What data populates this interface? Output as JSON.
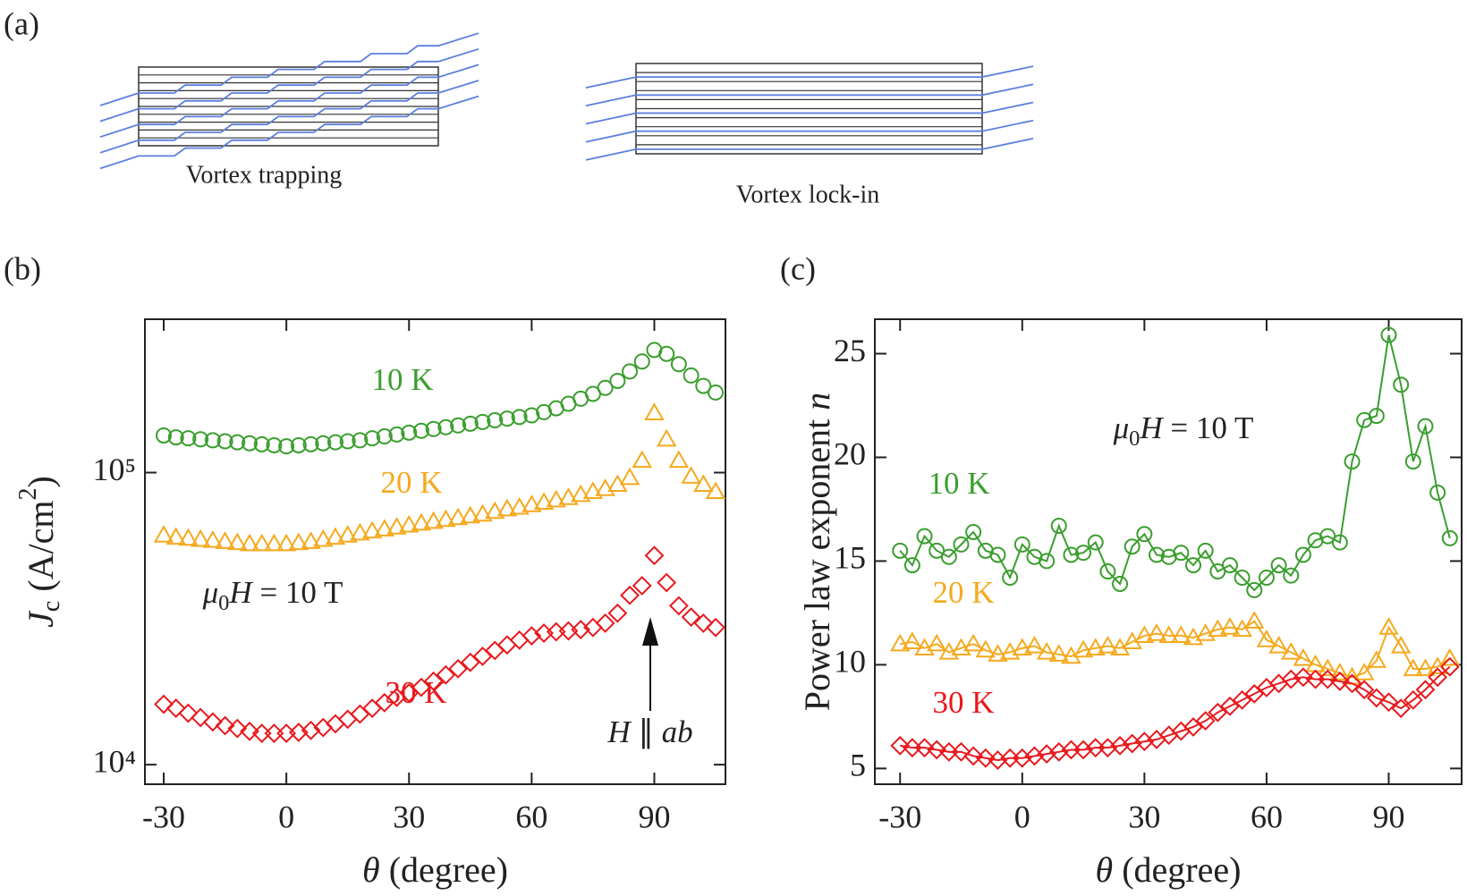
{
  "panel_labels": [
    "(a)",
    "(b)",
    "(c)"
  ],
  "diagram": {
    "left_label": "Vortex trapping",
    "right_label": "Vortex lock-in"
  },
  "chart_data": [
    {
      "type": "scatter",
      "log_y": true,
      "lines": false,
      "ylabel": [
        "J",
        "c",
        " (A/cm",
        "2",
        ")"
      ],
      "xlabel": [
        "θ",
        " (degree)"
      ],
      "annotation_field": [
        "μ",
        "0",
        "H",
        " = 10 T"
      ],
      "annotation_arrow": [
        "H",
        " ∥ ",
        "ab"
      ],
      "xlim": [
        -34.6,
        107.4
      ],
      "xticks": [
        -30,
        0,
        30,
        60,
        90
      ],
      "ylim": [
        8570,
        335000
      ],
      "yticks": [
        {
          "value": 10000,
          "label": "10⁴"
        },
        {
          "value": 100000,
          "label": "10⁵"
        }
      ],
      "x": [
        -30,
        -27,
        -24,
        -21,
        -18,
        -15,
        -12,
        -9,
        -6,
        -3,
        0,
        3,
        6,
        9,
        12,
        15,
        18,
        21,
        24,
        27,
        30,
        33,
        36,
        39,
        42,
        45,
        48,
        51,
        54,
        57,
        60,
        63,
        66,
        69,
        72,
        75,
        78,
        81,
        84,
        87,
        90,
        93,
        96,
        99,
        102,
        105
      ],
      "series": [
        {
          "name": "10 K",
          "color": "#3a9e2e",
          "marker": "circle",
          "values": [
            134000,
            132000,
            131000,
            130000,
            129000,
            128000,
            127000,
            126000,
            125000,
            124000,
            123000,
            124000,
            125000,
            126000,
            127000,
            128000,
            129000,
            131000,
            133000,
            135000,
            137000,
            139000,
            141000,
            143000,
            145000,
            147000,
            149000,
            151000,
            153000,
            155000,
            157000,
            161000,
            166000,
            172000,
            179000,
            186000,
            195000,
            206000,
            222000,
            240000,
            263000,
            255000,
            235000,
            215000,
            198000,
            188000
          ]
        },
        {
          "name": "20 K",
          "color": "#f5a91e",
          "marker": "triangle",
          "values": [
            61000,
            60000,
            59500,
            59000,
            58500,
            58000,
            57500,
            57000,
            57000,
            57000,
            57000,
            57500,
            58000,
            59000,
            60000,
            61000,
            62000,
            63000,
            64000,
            65000,
            66000,
            67000,
            68000,
            69000,
            70000,
            71000,
            72000,
            73500,
            75000,
            76000,
            77500,
            79000,
            80500,
            82000,
            84000,
            86000,
            88000,
            91000,
            96000,
            110000,
            160000,
            130000,
            110000,
            97000,
            91000,
            86000
          ]
        },
        {
          "name": "30 K",
          "color": "#e8191e",
          "marker": "diamond",
          "values": [
            16100,
            15600,
            15000,
            14500,
            14000,
            13600,
            13300,
            13000,
            12800,
            12800,
            12800,
            12900,
            13100,
            13400,
            13800,
            14300,
            14900,
            15600,
            16300,
            17000,
            17600,
            18400,
            19300,
            20300,
            21300,
            22400,
            23500,
            24600,
            25700,
            26700,
            27600,
            28200,
            28500,
            28700,
            29000,
            29500,
            30500,
            33000,
            38000,
            41000,
            52000,
            42000,
            35000,
            32000,
            30500,
            29500
          ]
        }
      ]
    },
    {
      "type": "line",
      "log_y": false,
      "lines": true,
      "ylabel": [
        "Power law exponent ",
        "n"
      ],
      "xlabel": [
        "θ",
        " (degree)"
      ],
      "annotation_field": [
        "μ",
        "0",
        "H",
        " = 10 T"
      ],
      "xlim": [
        -36.2,
        107.9
      ],
      "xticks": [
        -30,
        0,
        30,
        60,
        90
      ],
      "ylim": [
        4.24,
        26.66
      ],
      "yticks": [
        5,
        10,
        15,
        20,
        25
      ],
      "x": [
        -30,
        -27,
        -24,
        -21,
        -18,
        -15,
        -12,
        -9,
        -6,
        -3,
        0,
        3,
        6,
        9,
        12,
        15,
        18,
        21,
        24,
        27,
        30,
        33,
        36,
        39,
        42,
        45,
        48,
        51,
        54,
        57,
        60,
        63,
        66,
        69,
        72,
        75,
        78,
        81,
        84,
        87,
        90,
        93,
        96,
        99,
        102,
        105
      ],
      "series": [
        {
          "name": "10 K",
          "color": "#3a9e2e",
          "marker": "circle",
          "values": [
            15.5,
            14.8,
            16.2,
            15.5,
            15.2,
            15.8,
            16.4,
            15.5,
            15.3,
            14.2,
            15.8,
            15.2,
            15.0,
            16.7,
            15.3,
            15.4,
            15.9,
            14.5,
            13.9,
            15.7,
            16.3,
            15.3,
            15.2,
            15.4,
            14.8,
            15.5,
            14.5,
            14.8,
            14.2,
            13.6,
            14.2,
            14.8,
            14.3,
            15.3,
            16.0,
            16.2,
            15.9,
            19.8,
            21.8,
            22.0,
            25.9,
            23.5,
            19.8,
            21.5,
            18.3,
            16.1
          ]
        },
        {
          "name": "20 K",
          "color": "#f5a91e",
          "marker": "triangle",
          "values": [
            11.0,
            11.1,
            10.8,
            11.0,
            10.6,
            10.8,
            11.0,
            10.7,
            10.5,
            10.6,
            10.8,
            10.9,
            10.6,
            10.5,
            10.4,
            10.7,
            10.8,
            10.9,
            10.8,
            11.1,
            11.4,
            11.5,
            11.4,
            11.4,
            11.3,
            11.5,
            11.7,
            11.8,
            11.7,
            12.1,
            11.2,
            10.9,
            10.6,
            10.3,
            10.0,
            9.8,
            9.6,
            9.4,
            9.6,
            10.2,
            11.8,
            10.9,
            9.8,
            9.8,
            9.9,
            10.3
          ]
        },
        {
          "name": "30 K",
          "color": "#e8191e",
          "marker": "diamond",
          "values": [
            6.1,
            6.0,
            6.0,
            5.9,
            5.8,
            5.8,
            5.6,
            5.5,
            5.4,
            5.5,
            5.5,
            5.6,
            5.7,
            5.8,
            5.9,
            5.9,
            6.0,
            6.0,
            6.1,
            6.2,
            6.3,
            6.4,
            6.6,
            6.8,
            7.0,
            7.3,
            7.7,
            8.0,
            8.3,
            8.6,
            8.9,
            9.1,
            9.3,
            9.4,
            9.3,
            9.3,
            9.2,
            9.1,
            8.8,
            8.4,
            8.2,
            7.9,
            8.3,
            8.8,
            9.4,
            9.9
          ]
        }
      ]
    }
  ]
}
